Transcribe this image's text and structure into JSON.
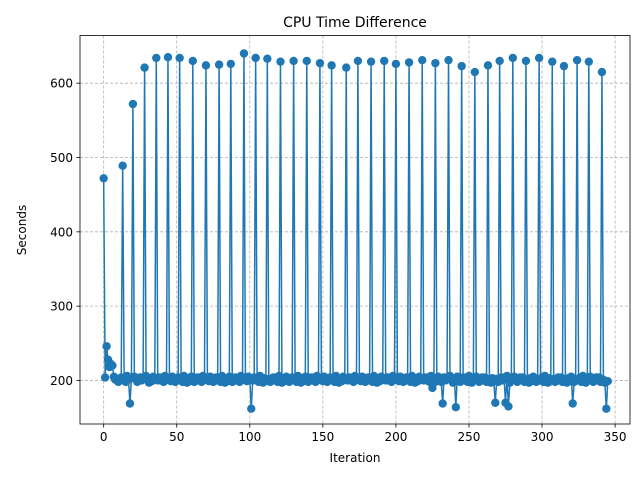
{
  "chart_data": {
    "type": "line",
    "title": "CPU Time Difference",
    "xlabel": "Iteration",
    "ylabel": "Seconds",
    "xlim": [
      -16.2,
      360.2
    ],
    "ylim": [
      141.4,
      664.2
    ],
    "xticks": [
      0,
      50,
      100,
      150,
      200,
      250,
      300,
      350
    ],
    "yticks": [
      200,
      300,
      400,
      500,
      600
    ],
    "grid": true,
    "marker": "circle",
    "color": "#1f77b4",
    "spikes": [
      [
        0,
        472
      ],
      [
        13,
        489
      ],
      [
        20,
        572
      ],
      [
        28,
        621
      ],
      [
        36,
        634
      ],
      [
        44,
        635
      ],
      [
        52,
        634
      ],
      [
        61,
        630
      ],
      [
        70,
        624
      ],
      [
        79,
        625
      ],
      [
        87,
        626
      ],
      [
        96,
        640
      ],
      [
        104,
        634
      ],
      [
        112,
        633
      ],
      [
        121,
        629
      ],
      [
        130,
        630
      ],
      [
        139,
        630
      ],
      [
        148,
        627
      ],
      [
        156,
        624
      ],
      [
        166,
        621
      ],
      [
        174,
        630
      ],
      [
        183,
        629
      ],
      [
        192,
        630
      ],
      [
        200,
        626
      ],
      [
        209,
        628
      ],
      [
        218,
        631
      ],
      [
        227,
        627
      ],
      [
        236,
        631
      ],
      [
        245,
        623
      ],
      [
        254,
        615
      ],
      [
        263,
        624
      ],
      [
        271,
        630
      ],
      [
        280,
        634
      ],
      [
        289,
        630
      ],
      [
        298,
        634
      ],
      [
        307,
        629
      ],
      [
        315,
        623
      ],
      [
        324,
        631
      ],
      [
        332,
        629
      ],
      [
        341,
        615
      ]
    ],
    "dips": [
      [
        18,
        169
      ],
      [
        101,
        162
      ],
      [
        225,
        190
      ],
      [
        232,
        169
      ],
      [
        241,
        164
      ],
      [
        268,
        170
      ],
      [
        275,
        170
      ],
      [
        277,
        165
      ],
      [
        321,
        169
      ],
      [
        344,
        162
      ]
    ],
    "early_values": [
      [
        2,
        246
      ],
      [
        3,
        228
      ],
      [
        4,
        218
      ],
      [
        5,
        222
      ],
      [
        6,
        220
      ],
      [
        7,
        205
      ],
      [
        8,
        201
      ]
    ],
    "baseline": 200,
    "n_points": 346
  }
}
